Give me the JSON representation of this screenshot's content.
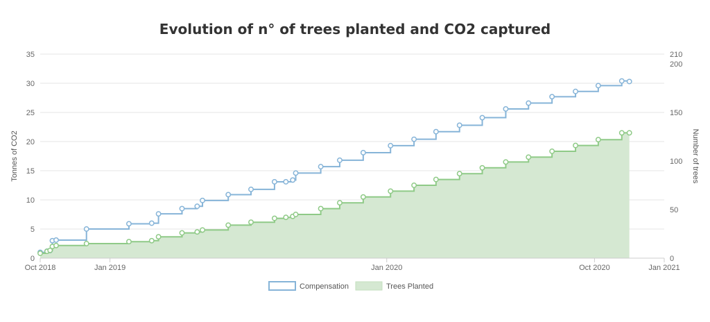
{
  "chart_data": {
    "type": "line",
    "title": "Evolution of n° of trees planted and CO2 captured",
    "ylabel_left": "Tonnes of CO2",
    "ylabel_right": "Number of trees",
    "x_range": [
      "2018-10-01",
      "2021-01-01"
    ],
    "x_ticks": [
      {
        "label": "Oct 2018",
        "date": "2018-10-01"
      },
      {
        "label": "Jan 2019",
        "date": "2019-01-01"
      },
      {
        "label": "Jan 2020",
        "date": "2020-01-01"
      },
      {
        "label": "Oct 2020",
        "date": "2020-10-01"
      },
      {
        "label": "Jan 2021",
        "date": "2021-01-01"
      }
    ],
    "y_left": {
      "min": 0,
      "max": 35,
      "ticks": [
        "0",
        "5",
        "10",
        "15",
        "20",
        "25",
        "30",
        "35"
      ]
    },
    "y_right": {
      "min": 0,
      "max": 210,
      "ticks": [
        "0",
        "50",
        "100",
        "150",
        "200",
        "210"
      ]
    },
    "grid": true,
    "legend_position": "bottom",
    "series": [
      {
        "name": "Compensation",
        "axis": "left",
        "style": "step-line",
        "color": "#86b4d8",
        "points": [
          [
            "2018-10-01",
            1.0
          ],
          [
            "2018-10-10",
            1.2
          ],
          [
            "2018-10-14",
            1.3
          ],
          [
            "2018-10-17",
            3.0
          ],
          [
            "2018-10-22",
            3.1
          ],
          [
            "2018-12-01",
            5.0
          ],
          [
            "2019-01-26",
            5.9
          ],
          [
            "2019-02-25",
            6.0
          ],
          [
            "2019-03-06",
            7.6
          ],
          [
            "2019-04-06",
            8.5
          ],
          [
            "2019-04-26",
            8.9
          ],
          [
            "2019-05-03",
            9.9
          ],
          [
            "2019-06-06",
            10.9
          ],
          [
            "2019-07-06",
            11.8
          ],
          [
            "2019-08-06",
            13.1
          ],
          [
            "2019-08-21",
            13.1
          ],
          [
            "2019-08-30",
            13.4
          ],
          [
            "2019-09-03",
            14.6
          ],
          [
            "2019-10-06",
            15.7
          ],
          [
            "2019-10-31",
            16.8
          ],
          [
            "2019-12-01",
            18.1
          ],
          [
            "2020-01-06",
            19.3
          ],
          [
            "2020-02-06",
            20.4
          ],
          [
            "2020-03-06",
            21.7
          ],
          [
            "2020-04-06",
            22.8
          ],
          [
            "2020-05-06",
            24.1
          ],
          [
            "2020-06-06",
            25.6
          ],
          [
            "2020-07-06",
            26.6
          ],
          [
            "2020-08-06",
            27.7
          ],
          [
            "2020-09-06",
            28.6
          ],
          [
            "2020-10-06",
            29.6
          ],
          [
            "2020-11-06",
            30.4
          ],
          [
            "2020-11-16",
            30.3
          ]
        ]
      },
      {
        "name": "Trees Planted",
        "axis": "right",
        "style": "step-area",
        "color": "#8fca87",
        "fill": "#d5e8d2",
        "points": [
          [
            "2018-10-01",
            5
          ],
          [
            "2018-10-10",
            7
          ],
          [
            "2018-10-14",
            8
          ],
          [
            "2018-10-17",
            12
          ],
          [
            "2018-10-22",
            13
          ],
          [
            "2018-12-01",
            15
          ],
          [
            "2019-01-26",
            17
          ],
          [
            "2019-02-25",
            18
          ],
          [
            "2019-03-06",
            22
          ],
          [
            "2019-04-06",
            26
          ],
          [
            "2019-04-26",
            27
          ],
          [
            "2019-05-03",
            29
          ],
          [
            "2019-06-06",
            34
          ],
          [
            "2019-07-06",
            37
          ],
          [
            "2019-08-06",
            41
          ],
          [
            "2019-08-21",
            42
          ],
          [
            "2019-08-30",
            43
          ],
          [
            "2019-09-03",
            45
          ],
          [
            "2019-10-06",
            51
          ],
          [
            "2019-10-31",
            57
          ],
          [
            "2019-12-01",
            63
          ],
          [
            "2020-01-06",
            69
          ],
          [
            "2020-02-06",
            75
          ],
          [
            "2020-03-06",
            81
          ],
          [
            "2020-04-06",
            87
          ],
          [
            "2020-05-06",
            93
          ],
          [
            "2020-06-06",
            99
          ],
          [
            "2020-07-06",
            104
          ],
          [
            "2020-08-06",
            110
          ],
          [
            "2020-09-06",
            116
          ],
          [
            "2020-10-06",
            122
          ],
          [
            "2020-11-06",
            129
          ],
          [
            "2020-11-16",
            129
          ]
        ]
      }
    ]
  }
}
